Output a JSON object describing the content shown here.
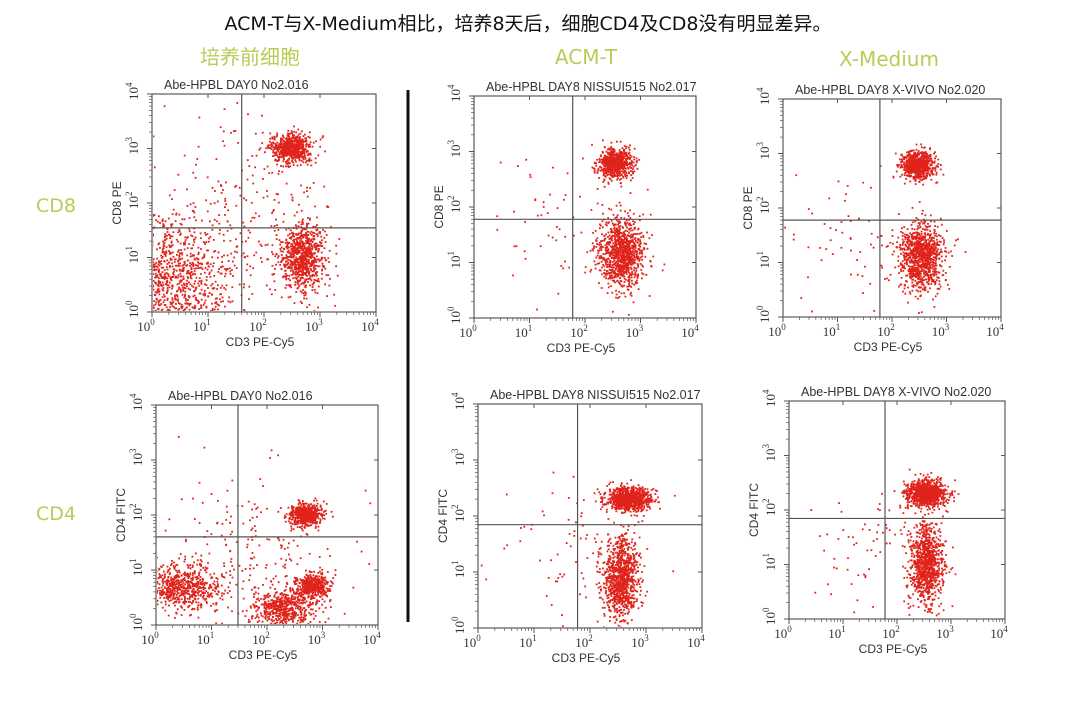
{
  "headline": "ACM-T与X-Medium相比，培养8天后，细胞CD4及CD8没有明显差异。",
  "column_labels": [
    "培养前细胞",
    "ACM-T",
    "X-Medium"
  ],
  "row_labels": [
    "CD8",
    "CD4"
  ],
  "colors": {
    "dots": "#e0231b",
    "label_green": "#b9cc55",
    "axes": "#555555"
  },
  "chart_data": [
    {
      "type": "scatter",
      "title": "Abe-HPBL DAY0 No2.016",
      "xlabel": "CD3 PE-Cy5",
      "ylabel": "CD8 PE",
      "xscale": "log",
      "yscale": "log",
      "xlim": [
        1,
        10000
      ],
      "ylim": [
        1,
        10000
      ],
      "xticks": [
        "10^0",
        "10^1",
        "10^2",
        "10^3",
        "10^4"
      ],
      "yticks": [
        "10^0",
        "10^1",
        "10^2",
        "10^3",
        "10^4"
      ],
      "gate": {
        "x": 40,
        "y": 35
      },
      "clusters": [
        {
          "name": "CD3- CD8-",
          "center": [
            2,
            4
          ],
          "spread": [
            0.55,
            0.55
          ],
          "count": 1100
        },
        {
          "name": "CD3+ CD8+",
          "center": [
            300,
            1000
          ],
          "spread": [
            0.17,
            0.14
          ],
          "count": 650
        },
        {
          "name": "CD3+ CD8-",
          "center": [
            500,
            10
          ],
          "spread": [
            0.2,
            0.3
          ],
          "count": 800
        },
        {
          "name": "scatter",
          "center": [
            50,
            60
          ],
          "spread": [
            0.9,
            0.9
          ],
          "count": 260
        }
      ]
    },
    {
      "type": "scatter",
      "title": "Abe-HPBL DAY8 NISSUI515 No2.017",
      "xlabel": "CD3 PE-Cy5",
      "ylabel": "CD8 PE",
      "xscale": "log",
      "yscale": "log",
      "xlim": [
        1,
        10000
      ],
      "ylim": [
        1,
        10000
      ],
      "xticks": [
        "10^0",
        "10^1",
        "10^2",
        "10^3",
        "10^4"
      ],
      "yticks": [
        "10^0",
        "10^1",
        "10^2",
        "10^3",
        "10^4"
      ],
      "gate": {
        "x": 60,
        "y": 60
      },
      "clusters": [
        {
          "name": "CD3+ CD8+",
          "center": [
            350,
            600
          ],
          "spread": [
            0.15,
            0.13
          ],
          "count": 700
        },
        {
          "name": "CD3+ CD8-",
          "center": [
            450,
            15
          ],
          "spread": [
            0.2,
            0.3
          ],
          "count": 1000
        },
        {
          "name": "scatter",
          "center": [
            40,
            30
          ],
          "spread": [
            0.7,
            0.7
          ],
          "count": 70
        }
      ]
    },
    {
      "type": "scatter",
      "title": "Abe-HPBL DAY8 X-VIVO No2.020",
      "xlabel": "CD3 PE-Cy5",
      "ylabel": "CD8 PE",
      "xscale": "log",
      "yscale": "log",
      "xlim": [
        1,
        10000
      ],
      "ylim": [
        1,
        10000
      ],
      "xticks": [
        "10^0",
        "10^1",
        "10^2",
        "10^3",
        "10^4"
      ],
      "yticks": [
        "10^0",
        "10^1",
        "10^2",
        "10^3",
        "10^4"
      ],
      "gate": {
        "x": 60,
        "y": 60
      },
      "clusters": [
        {
          "name": "CD3+ CD8+",
          "center": [
            300,
            600
          ],
          "spread": [
            0.15,
            0.13
          ],
          "count": 750
        },
        {
          "name": "CD3+ CD8-",
          "center": [
            350,
            13
          ],
          "spread": [
            0.2,
            0.3
          ],
          "count": 1000
        },
        {
          "name": "scatter",
          "center": [
            30,
            20
          ],
          "spread": [
            0.7,
            0.7
          ],
          "count": 70
        }
      ]
    },
    {
      "type": "scatter",
      "title": "Abe-HPBL DAY0 No2.016",
      "xlabel": "CD3 PE-Cy5",
      "ylabel": "CD4 FITC",
      "xscale": "log",
      "yscale": "log",
      "xlim": [
        1,
        10000
      ],
      "ylim": [
        1,
        10000
      ],
      "xticks": [
        "10^0",
        "10^1",
        "10^2",
        "10^3",
        "10^4"
      ],
      "yticks": [
        "10^0",
        "10^1",
        "10^2",
        "10^3",
        "10^4"
      ],
      "gate": {
        "x": 30,
        "y": 40
      },
      "clusters": [
        {
          "name": "CD3- CD4-",
          "center": [
            3,
            5
          ],
          "spread": [
            0.35,
            0.2
          ],
          "count": 650
        },
        {
          "name": "CD3+ CD4+",
          "center": [
            500,
            100
          ],
          "spread": [
            0.14,
            0.1
          ],
          "count": 550
        },
        {
          "name": "CD3+ CD4-",
          "center": [
            700,
            5
          ],
          "spread": [
            0.15,
            0.12
          ],
          "count": 450
        },
        {
          "name": "CD3+ CD4- low",
          "center": [
            200,
            2
          ],
          "spread": [
            0.3,
            0.18
          ],
          "count": 550
        },
        {
          "name": "scatter",
          "center": [
            50,
            20
          ],
          "spread": [
            0.8,
            0.7
          ],
          "count": 200
        }
      ]
    },
    {
      "type": "scatter",
      "title": "Abe-HPBL DAY8 NISSUI515 No2.017",
      "xlabel": "CD3 PE-Cy5",
      "ylabel": "CD4 FITC",
      "xscale": "log",
      "yscale": "log",
      "xlim": [
        1,
        10000
      ],
      "ylim": [
        1,
        10000
      ],
      "xticks": [
        "10^0",
        "10^1",
        "10^2",
        "10^3",
        "10^4"
      ],
      "yticks": [
        "10^0",
        "10^1",
        "10^2",
        "10^3",
        "10^4"
      ],
      "gate": {
        "x": 60,
        "y": 70
      },
      "clusters": [
        {
          "name": "CD3+ CD4+",
          "center": [
            500,
            200
          ],
          "spread": [
            0.2,
            0.1
          ],
          "count": 900
        },
        {
          "name": "CD3+ CD4-",
          "center": [
            350,
            8
          ],
          "spread": [
            0.16,
            0.35
          ],
          "count": 950
        },
        {
          "name": "scatter",
          "center": [
            40,
            30
          ],
          "spread": [
            0.7,
            0.6
          ],
          "count": 80
        }
      ]
    },
    {
      "type": "scatter",
      "title": "Abe-HPBL DAY8 X-VIVO No2.020",
      "xlabel": "CD3 PE-Cy5",
      "ylabel": "CD4 FITC",
      "xscale": "log",
      "yscale": "log",
      "xlim": [
        1,
        10000
      ],
      "ylim": [
        1,
        10000
      ],
      "xticks": [
        "10^0",
        "10^1",
        "10^2",
        "10^3",
        "10^4"
      ],
      "yticks": [
        "10^0",
        "10^1",
        "10^2",
        "10^3",
        "10^4"
      ],
      "gate": {
        "x": 60,
        "y": 70
      },
      "clusters": [
        {
          "name": "CD3+ CD4+",
          "center": [
            350,
            200
          ],
          "spread": [
            0.18,
            0.12
          ],
          "count": 900
        },
        {
          "name": "CD3+ CD4-",
          "center": [
            350,
            10
          ],
          "spread": [
            0.16,
            0.35
          ],
          "count": 950
        },
        {
          "name": "scatter",
          "center": [
            30,
            25
          ],
          "spread": [
            0.7,
            0.6
          ],
          "count": 70
        }
      ]
    }
  ]
}
